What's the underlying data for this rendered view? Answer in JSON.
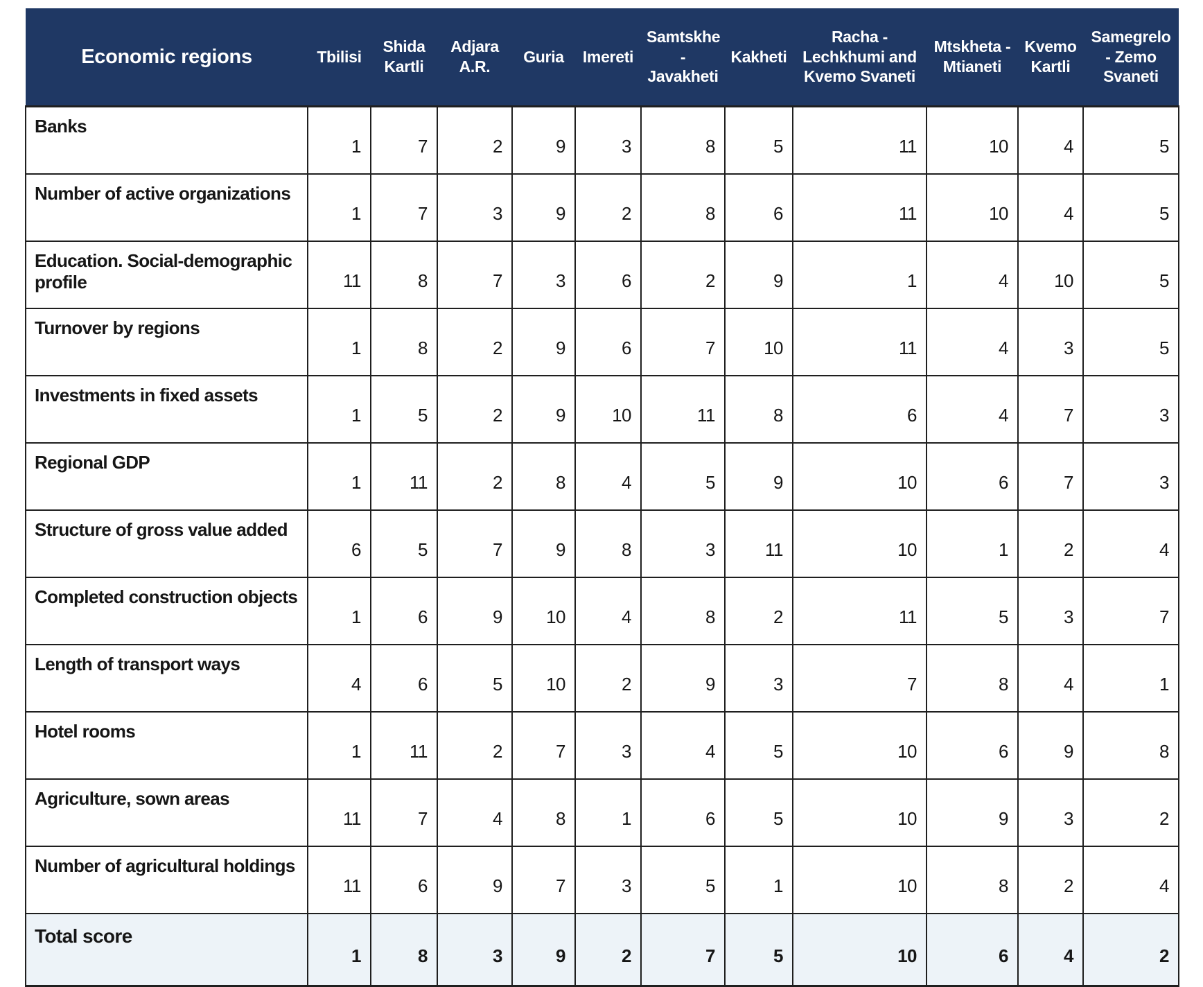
{
  "colors": {
    "header_bg": "#1f3864",
    "header_text": "#ffffff",
    "total_row_bg": "#edf3f8",
    "border": "#1f1f1f",
    "body_text": "#1a1a1a"
  },
  "chart_data": {
    "type": "table",
    "title": "Economic regions ranking table",
    "columns": [
      "Economic regions",
      "Tbilisi",
      "Shida Kartli",
      "Adjara A.R.",
      "Guria",
      "Imereti",
      "Samtskhe - Javakheti",
      "Kakheti",
      "Racha - Lechkhumi and Kvemo Svaneti",
      "Mtskheta - Mtianeti",
      "Kvemo Kartli",
      "Samegrelo - Zemo Svaneti"
    ],
    "rows": [
      {
        "label": "Banks",
        "values": [
          1,
          7,
          2,
          9,
          3,
          8,
          5,
          11,
          10,
          4,
          5
        ]
      },
      {
        "label": "Number of active organizations",
        "values": [
          1,
          7,
          3,
          9,
          2,
          8,
          6,
          11,
          10,
          4,
          5
        ]
      },
      {
        "label": "Education. Social-demographic profile",
        "values": [
          11,
          8,
          7,
          3,
          6,
          2,
          9,
          1,
          4,
          10,
          5
        ]
      },
      {
        "label": "Turnover by regions",
        "values": [
          1,
          8,
          2,
          9,
          6,
          7,
          10,
          11,
          4,
          3,
          5
        ]
      },
      {
        "label": "Investments in fixed assets",
        "values": [
          1,
          5,
          2,
          9,
          10,
          11,
          8,
          6,
          4,
          7,
          3
        ]
      },
      {
        "label": "Regional GDP",
        "values": [
          1,
          11,
          2,
          8,
          4,
          5,
          9,
          10,
          6,
          7,
          3
        ]
      },
      {
        "label": "Structure of gross value added",
        "values": [
          6,
          5,
          7,
          9,
          8,
          3,
          11,
          10,
          1,
          2,
          4
        ]
      },
      {
        "label": "Completed construction objects",
        "values": [
          1,
          6,
          9,
          10,
          4,
          8,
          2,
          11,
          5,
          3,
          7
        ]
      },
      {
        "label": "Length of transport ways",
        "values": [
          4,
          6,
          5,
          10,
          2,
          9,
          3,
          7,
          8,
          4,
          1
        ]
      },
      {
        "label": "Hotel rooms",
        "values": [
          1,
          11,
          2,
          7,
          3,
          4,
          5,
          10,
          6,
          9,
          8
        ]
      },
      {
        "label": "Agriculture, sown areas",
        "values": [
          11,
          7,
          4,
          8,
          1,
          6,
          5,
          10,
          9,
          3,
          2
        ]
      },
      {
        "label": "Number of agricultural holdings",
        "values": [
          11,
          6,
          9,
          7,
          3,
          5,
          1,
          10,
          8,
          2,
          4
        ]
      }
    ],
    "total_row": {
      "label": "Total score",
      "values": [
        1,
        8,
        3,
        9,
        2,
        7,
        5,
        10,
        6,
        4,
        2
      ]
    }
  }
}
